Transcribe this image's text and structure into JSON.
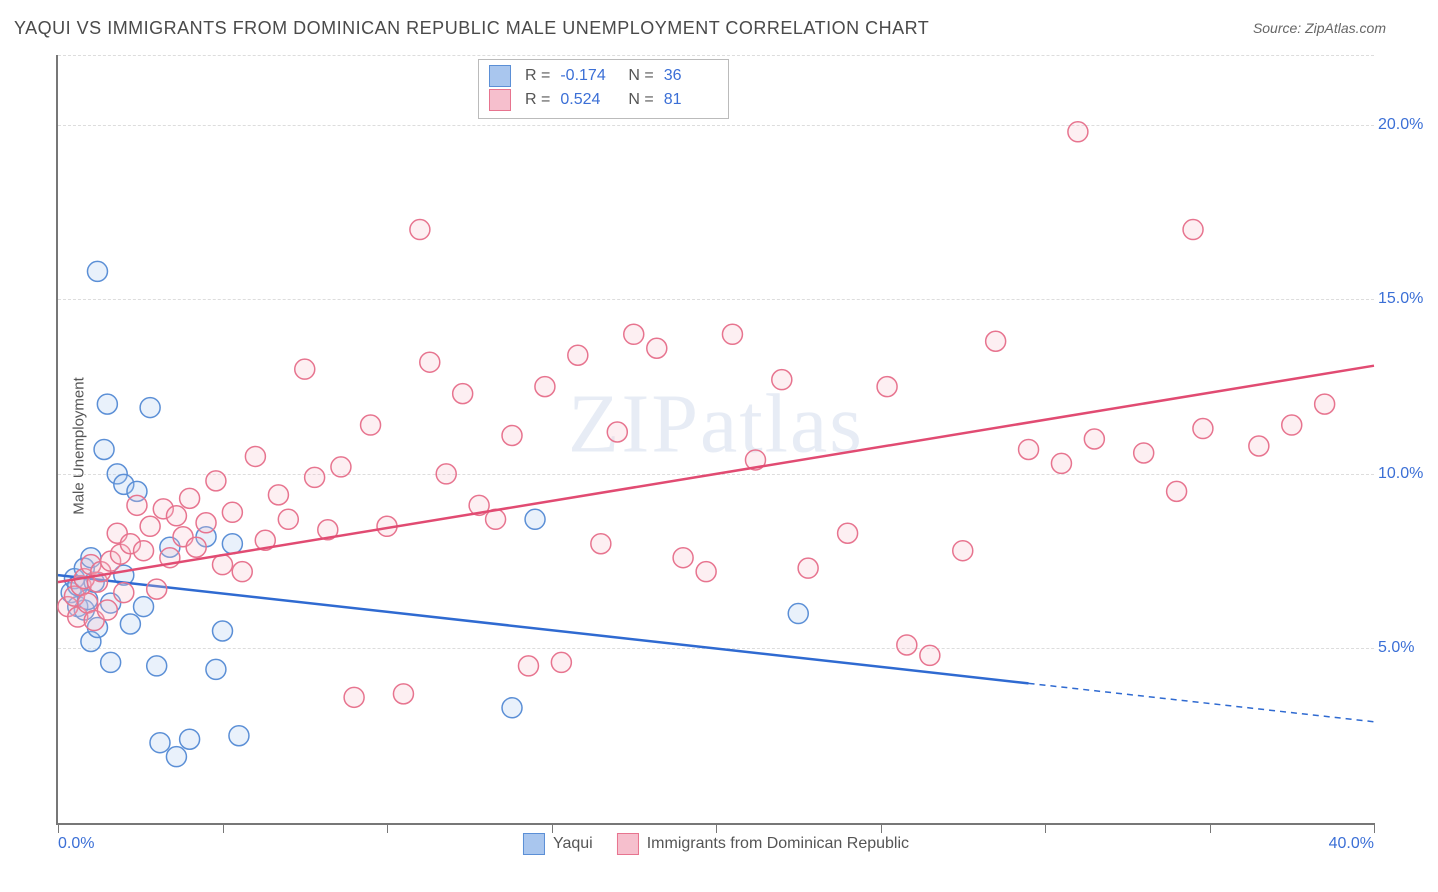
{
  "title": "YAQUI VS IMMIGRANTS FROM DOMINICAN REPUBLIC MALE UNEMPLOYMENT CORRELATION CHART",
  "source": "Source: ZipAtlas.com",
  "watermark": "ZIPatlas",
  "chart": {
    "type": "scatter",
    "ylabel": "Male Unemployment",
    "xlim": [
      0,
      40
    ],
    "ylim": [
      0,
      22
    ],
    "x_ticks": [
      0,
      5,
      10,
      15,
      20,
      25,
      30,
      35,
      40
    ],
    "x_tick_labels": {
      "0": "0.0%",
      "40": "40.0%"
    },
    "y_gridlines": [
      5,
      10,
      15,
      20,
      22
    ],
    "y_tick_labels": {
      "5": "5.0%",
      "10": "10.0%",
      "15": "15.0%",
      "20": "20.0%"
    },
    "background_color": "#ffffff",
    "grid_color": "#dddddd",
    "axis_color": "#777777",
    "tick_label_color": "#3b6fd6",
    "marker_radius": 10,
    "marker_opacity": 0.25,
    "series": [
      {
        "id": "yaqui",
        "label": "Yaqui",
        "color_fill": "#a9c6ee",
        "color_stroke": "#5b8fd6",
        "R": "-0.174",
        "N": "36",
        "trend": {
          "x1": 0,
          "y1": 7.1,
          "x2": 29.5,
          "y2": 4.0,
          "x2_ext": 40,
          "y2_ext": 2.9,
          "color": "#2f6ad1",
          "width": 2.5
        },
        "points": [
          [
            0.4,
            6.6
          ],
          [
            0.5,
            7.0
          ],
          [
            0.6,
            6.2
          ],
          [
            0.6,
            6.8
          ],
          [
            0.8,
            6.1
          ],
          [
            0.8,
            7.3
          ],
          [
            0.9,
            6.4
          ],
          [
            1.0,
            7.6
          ],
          [
            1.0,
            5.2
          ],
          [
            1.1,
            6.9
          ],
          [
            1.2,
            15.8
          ],
          [
            1.2,
            5.6
          ],
          [
            1.4,
            10.7
          ],
          [
            1.5,
            12.0
          ],
          [
            1.6,
            6.3
          ],
          [
            1.6,
            4.6
          ],
          [
            1.8,
            10.0
          ],
          [
            2.0,
            7.1
          ],
          [
            2.0,
            9.7
          ],
          [
            2.2,
            5.7
          ],
          [
            2.4,
            9.5
          ],
          [
            2.6,
            6.2
          ],
          [
            2.8,
            11.9
          ],
          [
            3.0,
            4.5
          ],
          [
            3.1,
            2.3
          ],
          [
            3.4,
            7.9
          ],
          [
            3.6,
            1.9
          ],
          [
            4.0,
            2.4
          ],
          [
            4.5,
            8.2
          ],
          [
            4.8,
            4.4
          ],
          [
            5.0,
            5.5
          ],
          [
            5.3,
            8.0
          ],
          [
            5.5,
            2.5
          ],
          [
            13.8,
            3.3
          ],
          [
            14.5,
            8.7
          ],
          [
            22.5,
            6.0
          ]
        ]
      },
      {
        "id": "dr",
        "label": "Immigrants from Dominican Republic",
        "color_fill": "#f6bfcd",
        "color_stroke": "#e7748f",
        "R": "0.524",
        "N": "81",
        "trend": {
          "x1": 0,
          "y1": 6.9,
          "x2": 40,
          "y2": 13.1,
          "color": "#e14b72",
          "width": 2.5
        },
        "points": [
          [
            0.3,
            6.2
          ],
          [
            0.5,
            6.5
          ],
          [
            0.6,
            5.9
          ],
          [
            0.7,
            6.8
          ],
          [
            0.8,
            7.0
          ],
          [
            0.9,
            6.3
          ],
          [
            1.0,
            7.4
          ],
          [
            1.1,
            5.8
          ],
          [
            1.2,
            6.9
          ],
          [
            1.3,
            7.2
          ],
          [
            1.5,
            6.1
          ],
          [
            1.6,
            7.5
          ],
          [
            1.8,
            8.3
          ],
          [
            1.9,
            7.7
          ],
          [
            2.0,
            6.6
          ],
          [
            2.2,
            8.0
          ],
          [
            2.4,
            9.1
          ],
          [
            2.6,
            7.8
          ],
          [
            2.8,
            8.5
          ],
          [
            3.0,
            6.7
          ],
          [
            3.2,
            9.0
          ],
          [
            3.4,
            7.6
          ],
          [
            3.6,
            8.8
          ],
          [
            3.8,
            8.2
          ],
          [
            4.0,
            9.3
          ],
          [
            4.2,
            7.9
          ],
          [
            4.5,
            8.6
          ],
          [
            4.8,
            9.8
          ],
          [
            5.0,
            7.4
          ],
          [
            5.3,
            8.9
          ],
          [
            5.6,
            7.2
          ],
          [
            6.0,
            10.5
          ],
          [
            6.3,
            8.1
          ],
          [
            6.7,
            9.4
          ],
          [
            7.0,
            8.7
          ],
          [
            7.5,
            13.0
          ],
          [
            7.8,
            9.9
          ],
          [
            8.2,
            8.4
          ],
          [
            8.6,
            10.2
          ],
          [
            9.0,
            3.6
          ],
          [
            9.5,
            11.4
          ],
          [
            10.0,
            8.5
          ],
          [
            10.5,
            3.7
          ],
          [
            11.0,
            17.0
          ],
          [
            11.3,
            13.2
          ],
          [
            11.8,
            10.0
          ],
          [
            12.3,
            12.3
          ],
          [
            12.8,
            9.1
          ],
          [
            13.3,
            8.7
          ],
          [
            13.8,
            11.1
          ],
          [
            14.3,
            4.5
          ],
          [
            14.8,
            12.5
          ],
          [
            15.3,
            4.6
          ],
          [
            15.8,
            13.4
          ],
          [
            16.5,
            8.0
          ],
          [
            17.0,
            11.2
          ],
          [
            17.5,
            14.0
          ],
          [
            18.2,
            13.6
          ],
          [
            19.0,
            7.6
          ],
          [
            19.7,
            7.2
          ],
          [
            20.5,
            14.0
          ],
          [
            21.2,
            10.4
          ],
          [
            22.0,
            12.7
          ],
          [
            22.8,
            7.3
          ],
          [
            24.0,
            8.3
          ],
          [
            25.2,
            12.5
          ],
          [
            25.8,
            5.1
          ],
          [
            26.5,
            4.8
          ],
          [
            27.5,
            7.8
          ],
          [
            28.5,
            13.8
          ],
          [
            29.5,
            10.7
          ],
          [
            30.5,
            10.3
          ],
          [
            31.0,
            19.8
          ],
          [
            31.5,
            11.0
          ],
          [
            33.0,
            10.6
          ],
          [
            34.0,
            9.5
          ],
          [
            34.5,
            17.0
          ],
          [
            34.8,
            11.3
          ],
          [
            36.5,
            10.8
          ],
          [
            37.5,
            11.4
          ],
          [
            38.5,
            12.0
          ]
        ]
      }
    ]
  },
  "legend_bottom": [
    {
      "label": "Yaqui",
      "fill": "#a9c6ee",
      "stroke": "#5b8fd6"
    },
    {
      "label": "Immigrants from Dominican Republic",
      "fill": "#f6bfcd",
      "stroke": "#e7748f"
    }
  ]
}
